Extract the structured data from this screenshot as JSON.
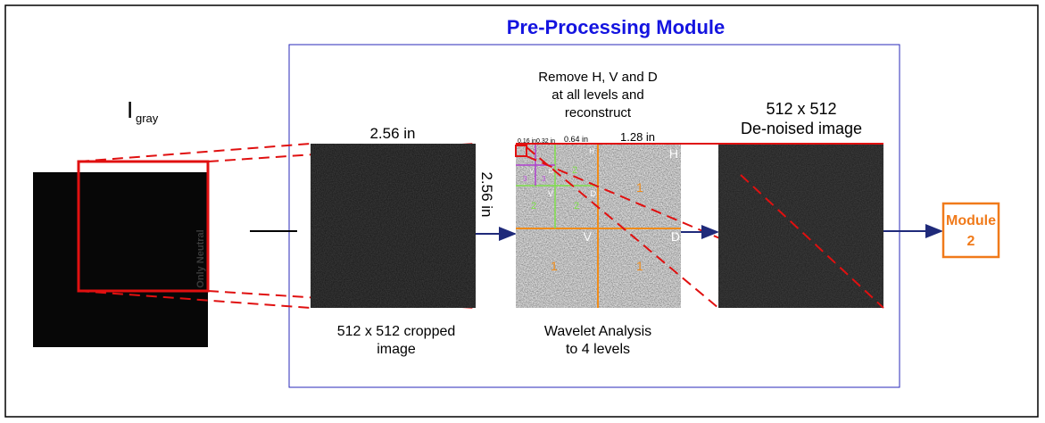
{
  "title": "Pre-Processing Module",
  "input": {
    "label": "I",
    "subscript": "gray",
    "watermark": "Only Neutral"
  },
  "crop": {
    "width_label": "2.56 in",
    "height_label": "2.56 in",
    "caption": [
      "512 x 512 cropped",
      "image"
    ]
  },
  "wavelet": {
    "top_caption": [
      "Remove H, V and D",
      "at all levels and",
      "reconstruct"
    ],
    "bottom_caption": [
      "Wavelet Analysis",
      "to 4 levels"
    ],
    "scale_labels": [
      "0.16 in",
      "0.32 in",
      "0.64 in",
      "1.28 in"
    ],
    "level1": {
      "h": "H",
      "v": "V",
      "d": "D",
      "number": "1"
    },
    "level2": {
      "h": "H",
      "v": "V",
      "d": "D",
      "number": "2"
    },
    "level3": {
      "v": "V",
      "d": "D",
      "number": "3"
    }
  },
  "denoised": {
    "caption": [
      "512 x 512",
      "De-noised image"
    ]
  },
  "output": {
    "label": [
      "Module",
      "2"
    ]
  }
}
